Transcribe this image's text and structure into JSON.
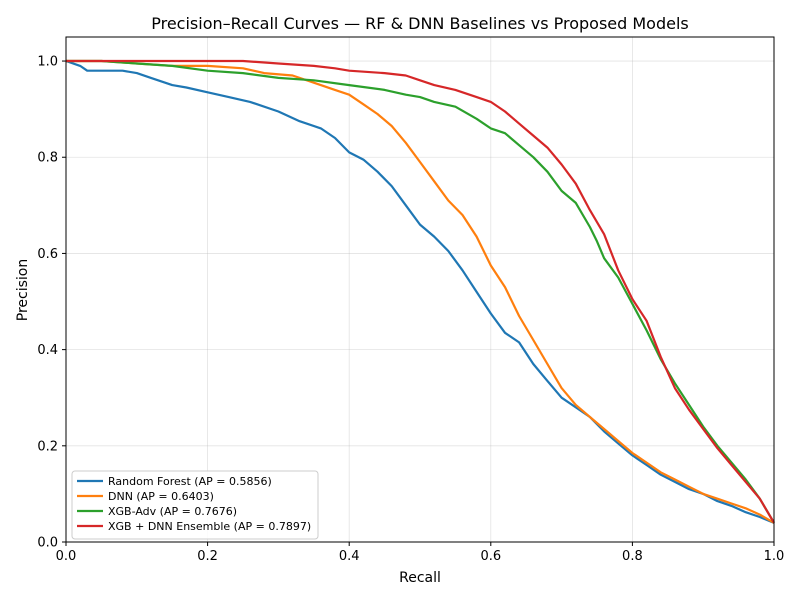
{
  "chart_data": {
    "type": "line",
    "title": "Precision–Recall Curves — RF & DNN Baselines vs Proposed Models",
    "xlabel": "Recall",
    "ylabel": "Precision",
    "xlim": [
      0.0,
      1.0
    ],
    "ylim": [
      0.0,
      1.05
    ],
    "xticks": [
      "0.0",
      "0.2",
      "0.4",
      "0.6",
      "0.8",
      "1.0"
    ],
    "yticks": [
      "0.0",
      "0.2",
      "0.4",
      "0.6",
      "0.8",
      "1.0"
    ],
    "grid": true,
    "legend_position": "bottom-left",
    "series": [
      {
        "name": "Random Forest (AP = 0.5856)",
        "color": "#1f77b4",
        "x": [
          0.0,
          0.02,
          0.03,
          0.05,
          0.08,
          0.1,
          0.12,
          0.15,
          0.17,
          0.2,
          0.23,
          0.26,
          0.3,
          0.33,
          0.36,
          0.38,
          0.4,
          0.42,
          0.44,
          0.46,
          0.48,
          0.5,
          0.52,
          0.54,
          0.56,
          0.58,
          0.6,
          0.62,
          0.64,
          0.66,
          0.68,
          0.7,
          0.72,
          0.74,
          0.76,
          0.78,
          0.8,
          0.82,
          0.84,
          0.86,
          0.88,
          0.9,
          0.92,
          0.94,
          0.96,
          0.98,
          1.0
        ],
        "y": [
          1.0,
          0.99,
          0.98,
          0.98,
          0.98,
          0.975,
          0.965,
          0.95,
          0.945,
          0.935,
          0.925,
          0.915,
          0.895,
          0.875,
          0.86,
          0.84,
          0.81,
          0.795,
          0.77,
          0.74,
          0.7,
          0.66,
          0.635,
          0.605,
          0.565,
          0.52,
          0.475,
          0.435,
          0.415,
          0.37,
          0.335,
          0.3,
          0.28,
          0.26,
          0.23,
          0.205,
          0.18,
          0.16,
          0.14,
          0.125,
          0.11,
          0.1,
          0.085,
          0.075,
          0.062,
          0.052,
          0.04
        ]
      },
      {
        "name": "DNN (AP = 0.6403)",
        "color": "#ff7f0e",
        "x": [
          0.0,
          0.05,
          0.1,
          0.15,
          0.2,
          0.25,
          0.28,
          0.32,
          0.35,
          0.38,
          0.4,
          0.42,
          0.44,
          0.46,
          0.48,
          0.5,
          0.52,
          0.54,
          0.56,
          0.58,
          0.6,
          0.62,
          0.64,
          0.66,
          0.68,
          0.7,
          0.72,
          0.74,
          0.76,
          0.78,
          0.8,
          0.82,
          0.84,
          0.86,
          0.88,
          0.9,
          0.92,
          0.94,
          0.96,
          0.98,
          1.0
        ],
        "y": [
          1.0,
          1.0,
          0.995,
          0.99,
          0.99,
          0.985,
          0.975,
          0.97,
          0.955,
          0.94,
          0.93,
          0.91,
          0.89,
          0.865,
          0.83,
          0.79,
          0.75,
          0.71,
          0.68,
          0.635,
          0.575,
          0.53,
          0.47,
          0.42,
          0.37,
          0.32,
          0.285,
          0.26,
          0.235,
          0.21,
          0.185,
          0.165,
          0.145,
          0.13,
          0.115,
          0.1,
          0.09,
          0.08,
          0.07,
          0.057,
          0.04
        ]
      },
      {
        "name": "XGB-Adv (AP = 0.7676)",
        "color": "#2ca02c",
        "x": [
          0.0,
          0.05,
          0.1,
          0.15,
          0.2,
          0.25,
          0.3,
          0.35,
          0.4,
          0.45,
          0.48,
          0.5,
          0.52,
          0.55,
          0.58,
          0.6,
          0.62,
          0.64,
          0.66,
          0.68,
          0.7,
          0.72,
          0.74,
          0.75,
          0.76,
          0.78,
          0.8,
          0.82,
          0.84,
          0.86,
          0.88,
          0.9,
          0.92,
          0.94,
          0.96,
          0.98,
          1.0
        ],
        "y": [
          1.0,
          1.0,
          0.995,
          0.99,
          0.98,
          0.975,
          0.965,
          0.96,
          0.95,
          0.94,
          0.93,
          0.925,
          0.915,
          0.905,
          0.88,
          0.86,
          0.85,
          0.825,
          0.8,
          0.77,
          0.73,
          0.705,
          0.655,
          0.625,
          0.59,
          0.55,
          0.495,
          0.44,
          0.38,
          0.33,
          0.285,
          0.24,
          0.2,
          0.165,
          0.13,
          0.09,
          0.04
        ]
      },
      {
        "name": "XGB + DNN Ensemble (AP = 0.7897)",
        "color": "#d62728",
        "x": [
          0.0,
          0.05,
          0.1,
          0.15,
          0.2,
          0.25,
          0.3,
          0.35,
          0.38,
          0.4,
          0.45,
          0.48,
          0.5,
          0.52,
          0.55,
          0.58,
          0.6,
          0.62,
          0.64,
          0.66,
          0.68,
          0.7,
          0.72,
          0.74,
          0.76,
          0.78,
          0.8,
          0.82,
          0.84,
          0.86,
          0.88,
          0.9,
          0.92,
          0.94,
          0.96,
          0.98,
          1.0
        ],
        "y": [
          1.0,
          1.0,
          1.0,
          1.0,
          1.0,
          1.0,
          0.995,
          0.99,
          0.985,
          0.98,
          0.975,
          0.97,
          0.96,
          0.95,
          0.94,
          0.925,
          0.915,
          0.895,
          0.87,
          0.845,
          0.82,
          0.785,
          0.745,
          0.69,
          0.64,
          0.565,
          0.505,
          0.46,
          0.385,
          0.32,
          0.275,
          0.235,
          0.195,
          0.16,
          0.125,
          0.09,
          0.04
        ]
      }
    ]
  }
}
